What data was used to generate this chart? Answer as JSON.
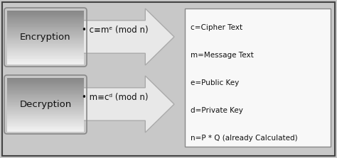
{
  "bg_color": "#c8c8c8",
  "outer_border_color": "#444444",
  "box_gradient_top": "#888888",
  "box_gradient_bottom": "#f0f0f0",
  "box_edge_color": "#888888",
  "arrow_face_color": "#e8e8e8",
  "arrow_edge_color": "#aaaaaa",
  "info_box_bg": "#f8f8f8",
  "info_box_edge": "#888888",
  "label_top": "Encryption",
  "label_bottom": "Decryption",
  "formula_top": "• c≡mᵉ (mod n)",
  "formula_bottom": "• m≡cᵈ (mod n)",
  "info_lines": [
    "c=Cipher Text",
    "m=Message Text",
    "e=Public Key",
    "d=Private Key",
    "n=P * Q (already Calculated)"
  ],
  "text_color": "#111111",
  "font_size_label": 9.5,
  "font_size_formula": 8.5,
  "font_size_info": 7.5
}
